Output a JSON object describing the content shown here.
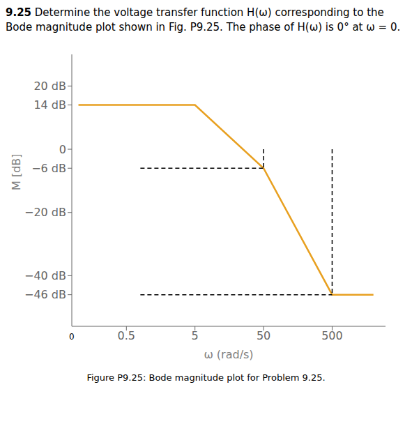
{
  "chart_data": {
    "type": "line",
    "title": "9.25",
    "subtitle": "Determine the voltage transfer function H(ω) corresponding to the Bode magnitude plot shown in Fig. P9.25. The phase of H(ω) is 0° at ω = 0.",
    "x_label": "ω (rad/s)",
    "y_label": "M [dB]",
    "log": "x",
    "xlim": [
      0.08,
      3000
    ],
    "xticks": [
      0.5,
      5,
      50,
      500
    ],
    "ylim": [
      -56,
      30
    ],
    "yticks": [
      {
        "value": 20,
        "label": "20 dB"
      },
      {
        "value": 14,
        "label": "14 dB"
      },
      0,
      {
        "value": -6,
        "label": "−6 dB"
      },
      {
        "value": -20,
        "label": "−20 dB"
      },
      {
        "value": -40,
        "label": "−40 dB"
      },
      {
        "value": -46,
        "label": "−46 dB"
      }
    ],
    "annotations": [
      "0",
      "Figure P9.25: Bode magnitude plot for Problem 9.25."
    ],
    "series": [
      {
        "color": "#E8A020",
        "line_style": "solid",
        "x": [
          0.1,
          5,
          50,
          500,
          2000
        ],
        "values": [
          14,
          14,
          -6,
          -46,
          -46
        ]
      },
      {
        "color": "#000000",
        "line_style": "dashed",
        "x": [
          0.8,
          50
        ],
        "values": [
          -6,
          -6
        ]
      },
      {
        "color": "#000000",
        "line_style": "dashed",
        "x": [
          50,
          50
        ],
        "values": [
          0,
          -6
        ]
      },
      {
        "color": "#000000",
        "line_style": "dashed",
        "x": [
          0.8,
          500
        ],
        "values": [
          -46,
          -46
        ]
      },
      {
        "color": "#000000",
        "line_style": "dashed",
        "x": [
          500,
          500
        ],
        "values": [
          0,
          -46
        ]
      }
    ]
  }
}
